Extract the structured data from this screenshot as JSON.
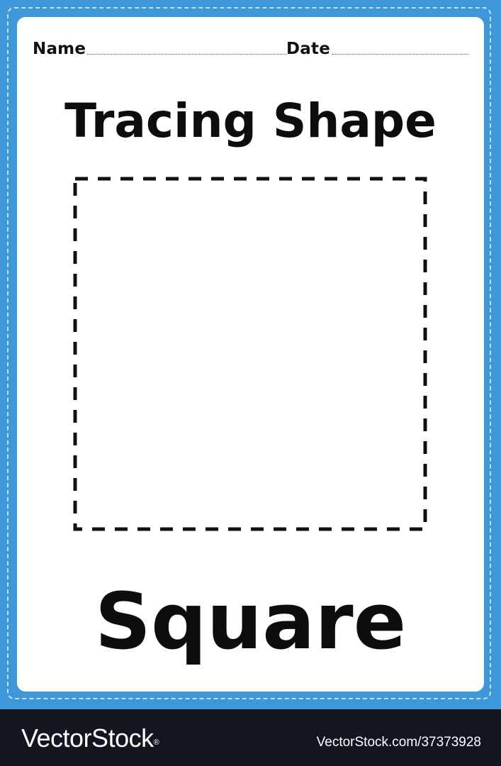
{
  "worksheet": {
    "name_label": "Name",
    "date_label": "Date",
    "title": "Tracing Shape",
    "shape_name": "Square"
  },
  "tracing_shape": {
    "shape": "square",
    "stroke_color": "#111111",
    "style": "dashed"
  },
  "colors": {
    "border": "#3d97d8",
    "stitch": "#bfe0f6",
    "sheet": "#ffffff",
    "footer": "#12161f"
  },
  "footer": {
    "brand": "VectorStock",
    "brand_mark": "®",
    "image_id": "VectorStock.com/37373928"
  }
}
